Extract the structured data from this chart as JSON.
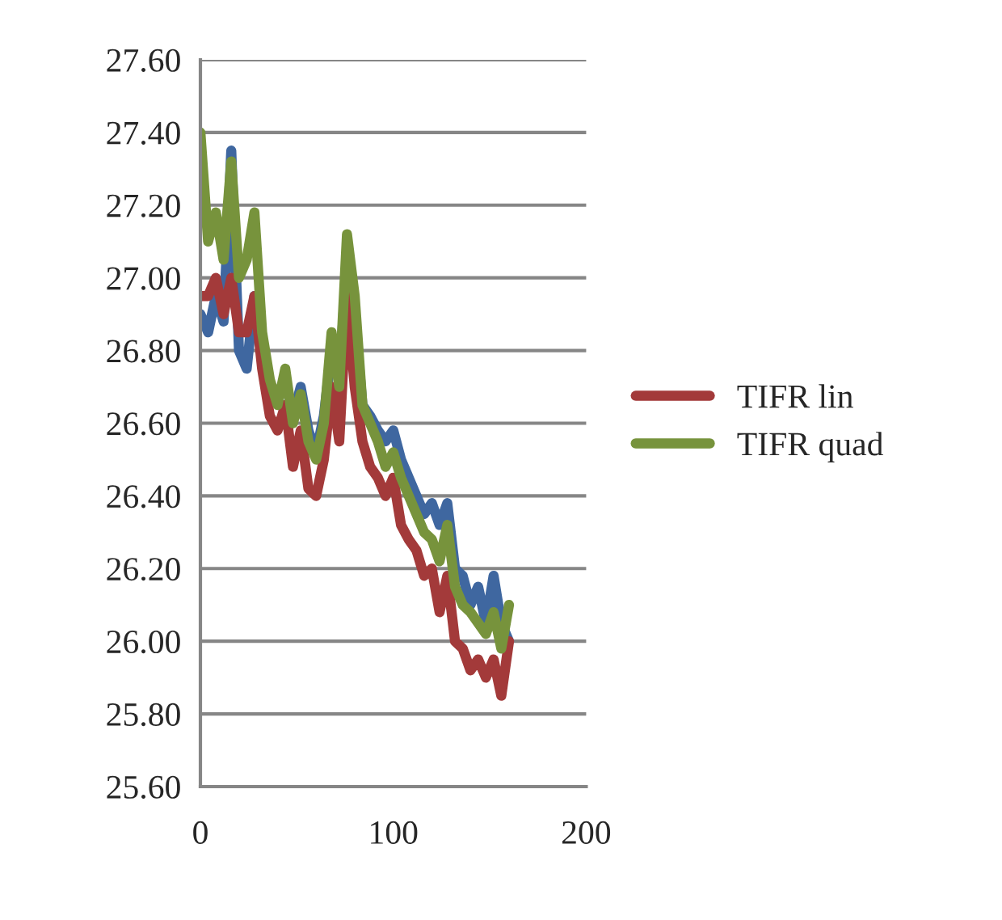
{
  "chart_data": {
    "type": "line",
    "x": [
      0,
      4,
      8,
      12,
      16,
      20,
      24,
      28,
      32,
      36,
      40,
      44,
      48,
      52,
      56,
      60,
      64,
      68,
      72,
      76,
      80,
      84,
      88,
      92,
      96,
      100,
      104,
      108,
      112,
      116,
      120,
      124,
      128,
      132,
      136,
      140,
      144,
      148,
      152,
      156,
      160
    ],
    "series": [
      {
        "color": "#3f67a0",
        "values": [
          26.9,
          26.85,
          26.95,
          26.88,
          27.35,
          26.8,
          26.75,
          26.95,
          26.8,
          26.7,
          26.68,
          26.72,
          26.62,
          26.7,
          26.58,
          26.52,
          26.62,
          26.8,
          26.72,
          27.05,
          26.9,
          26.65,
          26.62,
          26.58,
          26.55,
          26.58,
          26.5,
          26.45,
          26.4,
          26.35,
          26.38,
          26.32,
          26.38,
          26.2,
          26.18,
          26.1,
          26.15,
          26.05,
          26.18,
          26.05,
          26.0
        ]
      },
      {
        "name": "TIFR lin",
        "color": "#a33a3a",
        "values": [
          26.95,
          26.95,
          27.0,
          26.9,
          27.0,
          26.85,
          26.85,
          26.95,
          26.75,
          26.62,
          26.58,
          26.65,
          26.48,
          26.58,
          26.42,
          26.4,
          26.5,
          26.7,
          26.55,
          26.95,
          26.7,
          26.55,
          26.48,
          26.45,
          26.4,
          26.45,
          26.32,
          26.28,
          26.25,
          26.18,
          26.2,
          26.08,
          26.18,
          26.0,
          25.98,
          25.92,
          25.95,
          25.9,
          25.95,
          25.85,
          26.0
        ]
      },
      {
        "name": "TIFR quad",
        "color": "#77933c",
        "values": [
          27.4,
          27.1,
          27.18,
          27.05,
          27.32,
          27.0,
          27.05,
          27.18,
          26.85,
          26.72,
          26.65,
          26.75,
          26.6,
          26.68,
          26.55,
          26.5,
          26.6,
          26.85,
          26.7,
          27.12,
          26.95,
          26.65,
          26.6,
          26.55,
          26.48,
          26.52,
          26.45,
          26.4,
          26.35,
          26.3,
          26.28,
          26.22,
          26.32,
          26.15,
          26.1,
          26.08,
          26.05,
          26.02,
          26.08,
          25.98,
          26.1
        ]
      }
    ],
    "xlim": [
      0,
      200
    ],
    "xticks": [
      0,
      100,
      200
    ],
    "ylim": [
      25.6,
      27.6
    ],
    "yticks": [
      {
        "value": 25.6,
        "label": "25.60"
      },
      {
        "value": 25.8,
        "label": "25.80"
      },
      {
        "value": 26.0,
        "label": "26.00"
      },
      {
        "value": 26.2,
        "label": "26.20"
      },
      {
        "value": 26.4,
        "label": "26.40"
      },
      {
        "value": 26.6,
        "label": "26.60"
      },
      {
        "value": 26.8,
        "label": "26.80"
      },
      {
        "value": 27.0,
        "label": "27.00"
      },
      {
        "value": 27.2,
        "label": "27.20"
      },
      {
        "value": 27.4,
        "label": "27.40"
      },
      {
        "value": 27.6,
        "label": "27.60"
      }
    ],
    "grid": "y",
    "legend": "right",
    "line_style": "solid"
  }
}
